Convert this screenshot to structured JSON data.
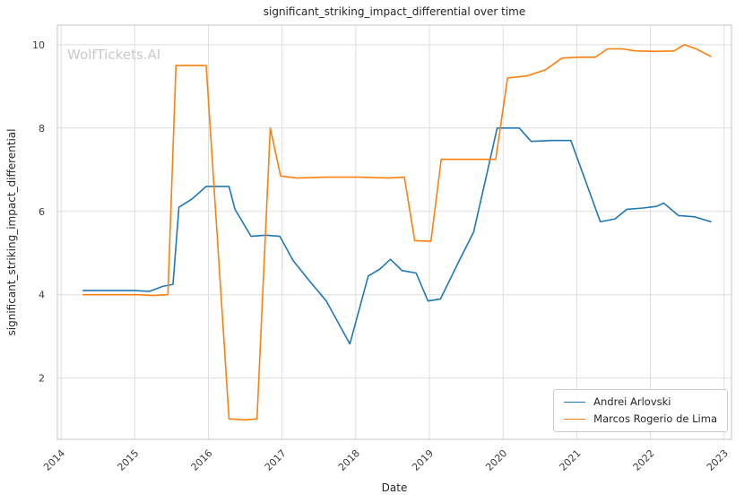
{
  "figure": {
    "watermark": "WolfTickets.AI"
  },
  "chart_data": {
    "type": "line",
    "title": "significant_striking_impact_differential over time",
    "xlabel": "Date",
    "ylabel": "significant_striking_impact_differential",
    "xlim": [
      2013.95,
      2023.1
    ],
    "ylim": [
      0.53,
      10.47
    ],
    "x_ticks": [
      "2014",
      "2015",
      "2016",
      "2017",
      "2018",
      "2019",
      "2020",
      "2021",
      "2022",
      "2023"
    ],
    "y_ticks": [
      "2",
      "4",
      "6",
      "8",
      "10"
    ],
    "grid": true,
    "x_tick_rotation": 45,
    "legend": {
      "position": "lower right",
      "entries": [
        "Andrei Arlovski",
        "Marcos Rogerio de Lima"
      ]
    },
    "artifact_line": {
      "x": 2017.0,
      "y_bottom": 4.62,
      "y_top": 5.22,
      "color": "#dcdcdc"
    },
    "series": [
      {
        "name": "Andrei Arlovski",
        "color": "#1f77b4",
        "points": [
          [
            2014.3,
            4.1
          ],
          [
            2014.75,
            4.1
          ],
          [
            2015.0,
            4.1
          ],
          [
            2015.2,
            4.08
          ],
          [
            2015.38,
            4.2
          ],
          [
            2015.52,
            4.25
          ],
          [
            2015.6,
            6.1
          ],
          [
            2015.78,
            6.3
          ],
          [
            2015.97,
            6.6
          ],
          [
            2016.28,
            6.6
          ],
          [
            2016.36,
            6.05
          ],
          [
            2016.58,
            5.4
          ],
          [
            2016.78,
            5.43
          ],
          [
            2016.97,
            5.4
          ],
          [
            2017.15,
            4.82
          ],
          [
            2017.35,
            4.38
          ],
          [
            2017.6,
            3.85
          ],
          [
            2017.92,
            2.82
          ],
          [
            2018.17,
            4.45
          ],
          [
            2018.33,
            4.62
          ],
          [
            2018.47,
            4.85
          ],
          [
            2018.63,
            4.58
          ],
          [
            2018.82,
            4.52
          ],
          [
            2018.98,
            3.85
          ],
          [
            2019.15,
            3.9
          ],
          [
            2019.4,
            4.8
          ],
          [
            2019.6,
            5.5
          ],
          [
            2019.78,
            6.9
          ],
          [
            2019.92,
            8.0
          ],
          [
            2020.22,
            8.0
          ],
          [
            2020.38,
            7.68
          ],
          [
            2020.65,
            7.7
          ],
          [
            2020.92,
            7.7
          ],
          [
            2021.32,
            5.75
          ],
          [
            2021.52,
            5.82
          ],
          [
            2021.68,
            6.05
          ],
          [
            2021.9,
            6.08
          ],
          [
            2022.08,
            6.12
          ],
          [
            2022.18,
            6.2
          ],
          [
            2022.38,
            5.9
          ],
          [
            2022.6,
            5.87
          ],
          [
            2022.82,
            5.75
          ]
        ]
      },
      {
        "name": "Marcos Rogerio de Lima",
        "color": "#ff7f0e",
        "points": [
          [
            2014.3,
            4.0
          ],
          [
            2014.75,
            4.0
          ],
          [
            2015.05,
            4.0
          ],
          [
            2015.25,
            3.98
          ],
          [
            2015.45,
            4.0
          ],
          [
            2015.56,
            9.5
          ],
          [
            2015.78,
            9.5
          ],
          [
            2015.97,
            9.5
          ],
          [
            2016.28,
            1.02
          ],
          [
            2016.5,
            1.0
          ],
          [
            2016.66,
            1.02
          ],
          [
            2016.84,
            8.0
          ],
          [
            2016.98,
            6.85
          ],
          [
            2017.2,
            6.8
          ],
          [
            2017.6,
            6.82
          ],
          [
            2018.05,
            6.82
          ],
          [
            2018.45,
            6.8
          ],
          [
            2018.66,
            6.82
          ],
          [
            2018.8,
            5.3
          ],
          [
            2019.02,
            5.28
          ],
          [
            2019.16,
            7.25
          ],
          [
            2019.55,
            7.25
          ],
          [
            2019.9,
            7.25
          ],
          [
            2020.06,
            9.2
          ],
          [
            2020.32,
            9.25
          ],
          [
            2020.58,
            9.4
          ],
          [
            2020.8,
            9.68
          ],
          [
            2021.05,
            9.7
          ],
          [
            2021.25,
            9.7
          ],
          [
            2021.42,
            9.9
          ],
          [
            2021.62,
            9.9
          ],
          [
            2021.8,
            9.85
          ],
          [
            2022.08,
            9.84
          ],
          [
            2022.32,
            9.85
          ],
          [
            2022.46,
            10.0
          ],
          [
            2022.62,
            9.9
          ],
          [
            2022.82,
            9.72
          ]
        ]
      }
    ]
  }
}
